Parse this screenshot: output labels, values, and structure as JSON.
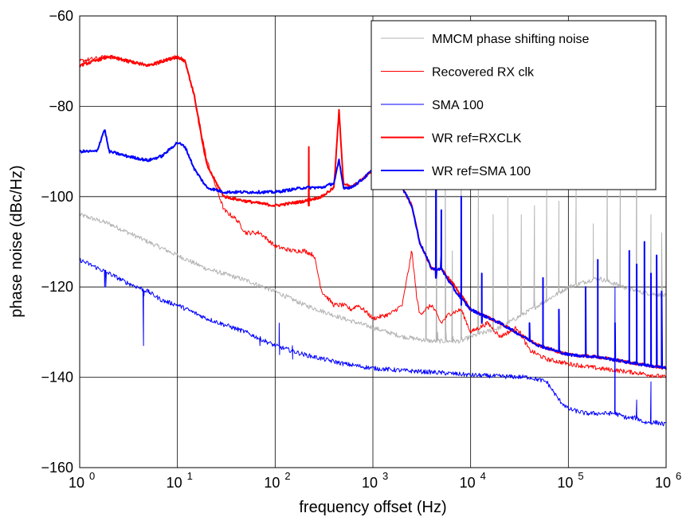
{
  "chart_data": {
    "type": "line",
    "title": "",
    "xlabel": "frequency offset (Hz)",
    "ylabel": "phase noise (dBc/Hz)",
    "xscale": "log",
    "xlim": [
      1,
      1000000
    ],
    "ylim": [
      -160,
      -60
    ],
    "x_ticks": [
      {
        "value": 1,
        "base": "10",
        "exp": "0"
      },
      {
        "value": 10,
        "base": "10",
        "exp": "1"
      },
      {
        "value": 100,
        "base": "10",
        "exp": "2"
      },
      {
        "value": 1000,
        "base": "10",
        "exp": "3"
      },
      {
        "value": 10000,
        "base": "10",
        "exp": "4"
      },
      {
        "value": 100000,
        "base": "10",
        "exp": "5"
      },
      {
        "value": 1000000,
        "base": "10",
        "exp": "6"
      }
    ],
    "y_ticks": [
      {
        "value": -60,
        "label": "−60"
      },
      {
        "value": -80,
        "label": "−80"
      },
      {
        "value": -100,
        "label": "−100"
      },
      {
        "value": -120,
        "label": "−120"
      },
      {
        "value": -140,
        "label": "−140"
      },
      {
        "value": -160,
        "label": "−160"
      }
    ],
    "grid": true,
    "legend_position": "top-right",
    "series": [
      {
        "name": "MMCM phase shifting noise",
        "color": "#b3b3b3",
        "width": 1,
        "points": [
          [
            1,
            -104
          ],
          [
            2,
            -106
          ],
          [
            5,
            -110
          ],
          [
            10,
            -113
          ],
          [
            20,
            -116
          ],
          [
            50,
            -118.5
          ],
          [
            100,
            -121
          ],
          [
            200,
            -124
          ],
          [
            500,
            -127
          ],
          [
            1000,
            -129
          ],
          [
            2000,
            -131
          ],
          [
            4000,
            -132
          ],
          [
            8000,
            -132
          ],
          [
            10000,
            -131
          ],
          [
            20000,
            -129
          ],
          [
            50000,
            -124
          ],
          [
            100000,
            -120
          ],
          [
            200000,
            -118
          ],
          [
            500000,
            -121
          ],
          [
            1000000,
            -122
          ]
        ],
        "spikes": [
          [
            3500,
            -64
          ],
          [
            3600,
            -132
          ],
          [
            4500,
            -92
          ],
          [
            4600,
            -130
          ],
          [
            5500,
            -90
          ],
          [
            5600,
            -130
          ],
          [
            6500,
            -112
          ],
          [
            6600,
            -131
          ],
          [
            8000,
            -84
          ],
          [
            8100,
            -131
          ],
          [
            12000,
            -96
          ],
          [
            12100,
            -129
          ],
          [
            17000,
            -104
          ],
          [
            17100,
            -128
          ],
          [
            24000,
            -100
          ],
          [
            24100,
            -127
          ],
          [
            33000,
            -104
          ],
          [
            33100,
            -126
          ],
          [
            45000,
            -102
          ],
          [
            45100,
            -123
          ],
          [
            60000,
            -97
          ],
          [
            60100,
            -122
          ],
          [
            80000,
            -101
          ],
          [
            80100,
            -120
          ],
          [
            120000,
            -98
          ],
          [
            120100,
            -118
          ],
          [
            180000,
            -106
          ],
          [
            180100,
            -118
          ],
          [
            250000,
            -90
          ],
          [
            250100,
            -118
          ],
          [
            340000,
            -91
          ],
          [
            340100,
            -118
          ],
          [
            500000,
            -78
          ],
          [
            500100,
            -120
          ],
          [
            700000,
            -104
          ],
          [
            700100,
            -121
          ],
          [
            900000,
            -108
          ]
        ]
      },
      {
        "name": "Recovered RX clk",
        "color": "#ff0000",
        "width": 1,
        "points": [
          [
            1,
            -70
          ],
          [
            2,
            -69
          ],
          [
            5,
            -71
          ],
          [
            10,
            -69
          ],
          [
            12,
            -70
          ],
          [
            15,
            -78
          ],
          [
            20,
            -92
          ],
          [
            30,
            -103
          ],
          [
            40,
            -105
          ],
          [
            50,
            -108
          ],
          [
            70,
            -108
          ],
          [
            100,
            -111
          ],
          [
            150,
            -112
          ],
          [
            200,
            -112
          ],
          [
            250,
            -113
          ],
          [
            300,
            -121
          ],
          [
            400,
            -124
          ],
          [
            500,
            -124
          ],
          [
            600,
            -125
          ],
          [
            700,
            -124
          ],
          [
            800,
            -125
          ],
          [
            900,
            -126
          ],
          [
            1000,
            -127
          ],
          [
            1500,
            -126
          ],
          [
            2000,
            -124
          ],
          [
            2500,
            -112
          ],
          [
            2800,
            -122
          ],
          [
            3000,
            -126
          ],
          [
            4000,
            -124
          ],
          [
            5000,
            -128
          ],
          [
            6000,
            -126
          ],
          [
            8000,
            -125
          ],
          [
            10000,
            -130
          ],
          [
            15000,
            -128
          ],
          [
            20000,
            -131
          ],
          [
            30000,
            -129
          ],
          [
            40000,
            -134
          ],
          [
            60000,
            -136
          ],
          [
            100000,
            -137
          ],
          [
            200000,
            -138
          ],
          [
            500000,
            -139
          ],
          [
            1000000,
            -140
          ]
        ],
        "spikes": []
      },
      {
        "name": "SMA 100",
        "color": "#0000ff",
        "width": 1,
        "points": [
          [
            1,
            -114
          ],
          [
            2,
            -117
          ],
          [
            3,
            -119
          ],
          [
            5,
            -121
          ],
          [
            7,
            -123
          ],
          [
            10,
            -124
          ],
          [
            20,
            -127
          ],
          [
            50,
            -130
          ],
          [
            100,
            -133
          ],
          [
            200,
            -135
          ],
          [
            500,
            -137
          ],
          [
            1000,
            -138
          ],
          [
            2000,
            -138.5
          ],
          [
            5000,
            -139
          ],
          [
            10000,
            -139.5
          ],
          [
            20000,
            -139.8
          ],
          [
            40000,
            -140
          ],
          [
            60000,
            -141
          ],
          [
            80000,
            -145
          ],
          [
            100000,
            -147
          ],
          [
            150000,
            -148
          ],
          [
            250000,
            -148
          ],
          [
            300000,
            -148
          ],
          [
            400000,
            -149
          ],
          [
            500000,
            -149
          ],
          [
            600000,
            -150
          ],
          [
            800000,
            -150
          ],
          [
            1000000,
            -150.5
          ]
        ],
        "spikes": [
          [
            1.8,
            -120
          ],
          [
            1.85,
            -120
          ],
          [
            4.5,
            -133
          ],
          [
            4.55,
            -122
          ],
          [
            60,
            -131
          ],
          [
            70,
            -133
          ],
          [
            110,
            -128
          ],
          [
            111,
            -135
          ],
          [
            150,
            -133
          ],
          [
            151,
            -136
          ],
          [
            300000,
            -120
          ],
          [
            301000,
            -147
          ],
          [
            500000,
            -145
          ],
          [
            501000,
            -149
          ],
          [
            700000,
            -141
          ],
          [
            701000,
            -150
          ]
        ]
      },
      {
        "name": "WR ref=RXCLK",
        "color": "#ff0000",
        "width": 2,
        "points": [
          [
            1,
            -71
          ],
          [
            2,
            -69
          ],
          [
            5,
            -71
          ],
          [
            10,
            -69
          ],
          [
            12,
            -70
          ],
          [
            15,
            -78
          ],
          [
            18,
            -88
          ],
          [
            20,
            -93
          ],
          [
            25,
            -97
          ],
          [
            30,
            -100
          ],
          [
            50,
            -101
          ],
          [
            100,
            -102
          ],
          [
            200,
            -101
          ],
          [
            300,
            -100
          ],
          [
            400,
            -98
          ],
          [
            450,
            -81
          ],
          [
            500,
            -97
          ],
          [
            600,
            -98
          ],
          [
            800,
            -96
          ],
          [
            1000,
            -94
          ],
          [
            1200,
            -90
          ],
          [
            1400,
            -94
          ],
          [
            2000,
            -98
          ],
          [
            2500,
            -102
          ],
          [
            3000,
            -110
          ],
          [
            4000,
            -116
          ],
          [
            5000,
            -116
          ],
          [
            7000,
            -120
          ],
          [
            10000,
            -125
          ],
          [
            20000,
            -128
          ],
          [
            50000,
            -133
          ],
          [
            100000,
            -135
          ],
          [
            200000,
            -135.5
          ],
          [
            500000,
            -137
          ],
          [
            1000000,
            -138
          ]
        ],
        "spikes": [
          [
            220,
            -102
          ],
          [
            221,
            -89
          ],
          [
            222,
            -102
          ]
        ]
      },
      {
        "name": "WR ref=SMA 100",
        "color": "#0000ff",
        "width": 2,
        "points": [
          [
            1,
            -90
          ],
          [
            1.5,
            -90
          ],
          [
            1.8,
            -85
          ],
          [
            2,
            -90
          ],
          [
            3,
            -91
          ],
          [
            5,
            -92
          ],
          [
            7,
            -91
          ],
          [
            10,
            -88
          ],
          [
            12,
            -89
          ],
          [
            15,
            -94
          ],
          [
            20,
            -98
          ],
          [
            30,
            -99
          ],
          [
            50,
            -99
          ],
          [
            100,
            -99
          ],
          [
            200,
            -98
          ],
          [
            300,
            -98
          ],
          [
            400,
            -97
          ],
          [
            450,
            -92
          ],
          [
            500,
            -98
          ],
          [
            600,
            -98
          ],
          [
            800,
            -96
          ],
          [
            1000,
            -94
          ],
          [
            1200,
            -88
          ],
          [
            1400,
            -93
          ],
          [
            2000,
            -98
          ],
          [
            2500,
            -102
          ],
          [
            3000,
            -110
          ],
          [
            4000,
            -116
          ],
          [
            5000,
            -116
          ],
          [
            7000,
            -121
          ],
          [
            10000,
            -125
          ],
          [
            20000,
            -128
          ],
          [
            50000,
            -133
          ],
          [
            100000,
            -135
          ],
          [
            200000,
            -135.5
          ],
          [
            500000,
            -137
          ],
          [
            1000000,
            -138
          ]
        ],
        "spikes": [
          [
            4400,
            -118
          ],
          [
            4420,
            -89
          ],
          [
            4440,
            -118
          ],
          [
            5000,
            -113
          ],
          [
            5010,
            -103
          ],
          [
            5020,
            -116
          ],
          [
            8000,
            -122
          ],
          [
            8010,
            -100
          ],
          [
            8020,
            -124
          ],
          [
            13000,
            -128
          ],
          [
            13010,
            -117
          ],
          [
            13020,
            -128
          ],
          [
            40000,
            -132
          ],
          [
            40010,
            -128
          ],
          [
            55000,
            -133
          ],
          [
            55010,
            -118
          ],
          [
            55020,
            -133
          ],
          [
            80000,
            -134
          ],
          [
            80010,
            -125
          ],
          [
            150000,
            -135
          ],
          [
            150010,
            -120
          ],
          [
            200000,
            -135
          ],
          [
            200010,
            -114
          ],
          [
            200020,
            -135
          ],
          [
            300000,
            -136
          ],
          [
            300010,
            -128
          ],
          [
            420000,
            -136
          ],
          [
            420010,
            -112
          ],
          [
            420020,
            -136
          ],
          [
            500000,
            -136
          ],
          [
            500010,
            -115
          ],
          [
            600000,
            -137
          ],
          [
            600010,
            -110
          ],
          [
            700000,
            -137
          ],
          [
            700010,
            -117
          ],
          [
            800000,
            -137
          ],
          [
            800010,
            -113
          ],
          [
            900000,
            -137
          ],
          [
            900010,
            -121
          ]
        ]
      }
    ]
  }
}
